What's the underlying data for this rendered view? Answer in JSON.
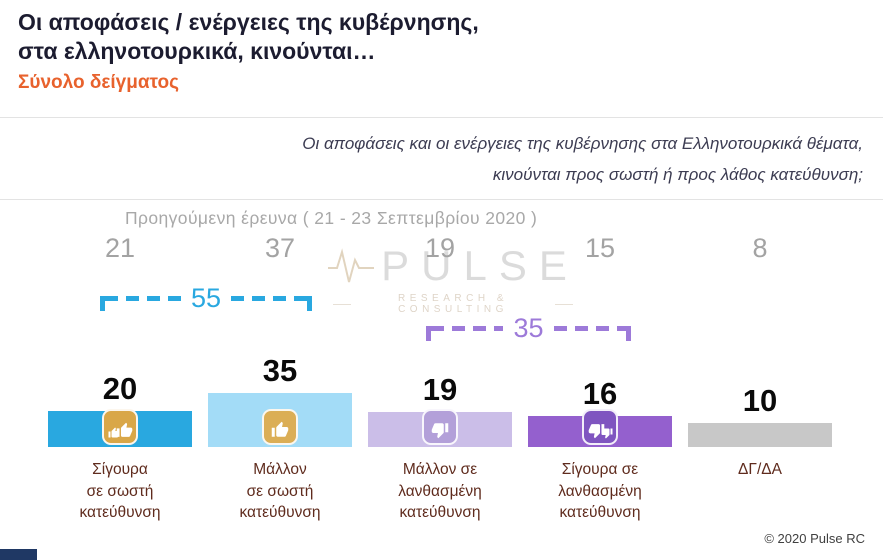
{
  "header": {
    "title_line1": "Οι αποφάσεις / ενέργειες της κυβέρνησης,",
    "title_line2": "στα ελληνοτουρκικά, κινούνται…",
    "subtitle": "Σύνολο δείγματος"
  },
  "question": {
    "line1": "Οι αποφάσεις και οι ενέργειες της κυβέρνησης στα Ελληνοτουρκικά θέματα,",
    "line2": "κινούνται προς σωστή ή προς λάθος κατεύθυνση;"
  },
  "previous_survey": {
    "label": "Προηγούμενη έρευνα ( 21 - 23 Σεπτεμβρίου  2020 )"
  },
  "watermark": {
    "name": "PULSE",
    "tagline": "RESEARCH & CONSULTING"
  },
  "chart_data": {
    "type": "bar",
    "title": "Οι αποφάσεις / ενέργειες της κυβέρνησης, στα ελληνοτουρκικά, κινούνται…",
    "categories": [
      "Σίγουρα\nσε σωστή\nκατεύθυνση",
      "Μάλλον\nσε σωστή\nκατεύθυνση",
      "Μάλλον σε\nλανθασμένη\nκατεύθυνση",
      "Σίγουρα σε\nλανθασμένη\nκατεύθυνση",
      "ΔΓ/ΔΑ"
    ],
    "values": [
      20,
      35,
      19,
      16,
      10
    ],
    "previous_values": [
      21,
      37,
      19,
      15,
      8
    ],
    "ylim": [
      0,
      40
    ],
    "grid": false,
    "legend": "none",
    "bar_colors": [
      "#29A8E0",
      "#A3DCF7",
      "#CBBEE8",
      "#9460CE",
      "#C8C8C8"
    ],
    "icon_colors": [
      "#D9A748",
      "#DBAE56",
      "#B3A0D9",
      "#7F55C0",
      null
    ],
    "icons": [
      "double-thumbs-up",
      "thumb-up",
      "thumb-down",
      "double-thumbs-down",
      null
    ],
    "groups": [
      {
        "label": "55",
        "spans_categories": [
          0,
          1
        ],
        "color": "#29A8E0"
      },
      {
        "label": "35",
        "spans_categories": [
          2,
          3
        ],
        "color": "#9D7AD9"
      }
    ]
  },
  "footer": {
    "copyright": "© 2020 Pulse RC"
  }
}
